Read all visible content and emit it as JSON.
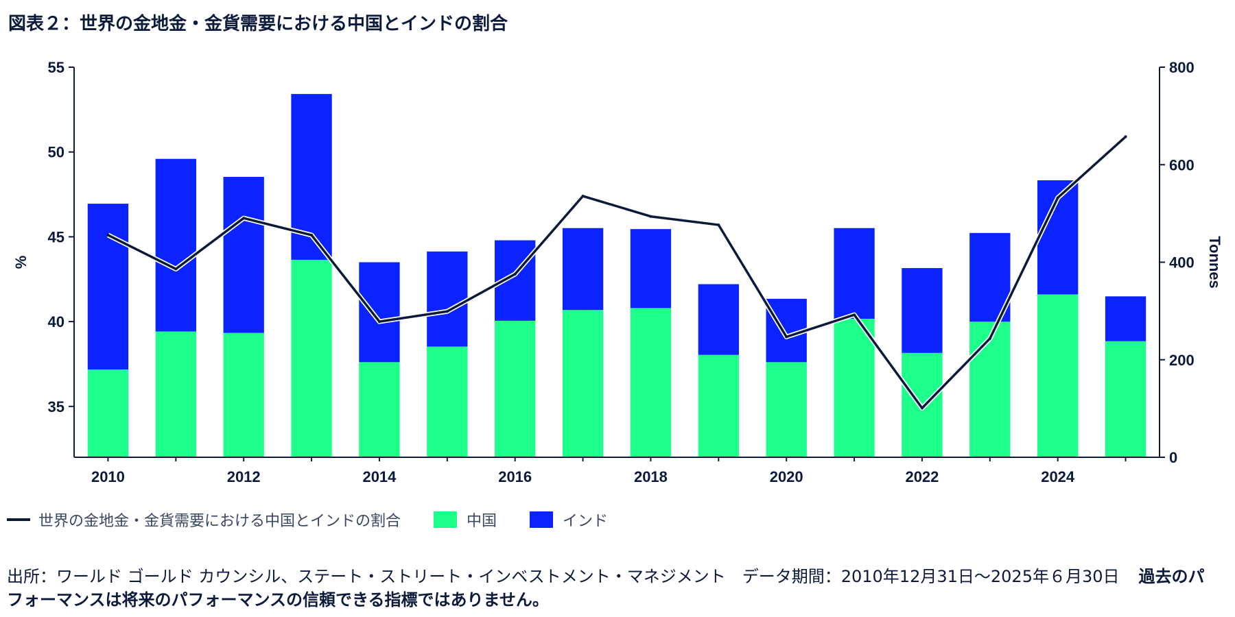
{
  "title": "図表２：世界の金地金・金貨需要における中国とインドの割合",
  "legend": {
    "line_label": "世界の金地金・金貨需要における中国とインドの割合",
    "china_label": "中国",
    "india_label": "インド"
  },
  "source": {
    "text": "出所：ワールド ゴールド カウンシル、ステート・ストリート・インベストメント・マネジメント　データ期間：2010年12月31日～2025年６月30日",
    "disclaimer": "過去のパフォーマンスは将来のパフォーマンスの信頼できる指標ではありません。"
  },
  "colors": {
    "china": "#1dff8a",
    "india": "#0a23ff",
    "line": "#0b1a3a"
  },
  "chart_data": {
    "type": "bar",
    "stacked": true,
    "categories": [
      "2010",
      "2011",
      "2012",
      "2013",
      "2014",
      "2015",
      "2016",
      "2017",
      "2018",
      "2019",
      "2020",
      "2021",
      "2022",
      "2023",
      "2024",
      "2025"
    ],
    "series": [
      {
        "name": "中国",
        "axis": "right",
        "unit": "Tonnes",
        "values": [
          180,
          258,
          255,
          405,
          195,
          227,
          280,
          302,
          306,
          210,
          195,
          284,
          214,
          278,
          334,
          238
        ]
      },
      {
        "name": "インド",
        "axis": "right",
        "unit": "Tonnes",
        "values": [
          340,
          354,
          320,
          340,
          205,
          195,
          165,
          168,
          162,
          145,
          130,
          186,
          174,
          182,
          234,
          92
        ]
      },
      {
        "name": "世界の金地金・金貨需要における中国とインドの割合",
        "type": "line",
        "axis": "left",
        "unit": "%",
        "values": [
          45.1,
          43.1,
          46.1,
          45.1,
          40.0,
          40.6,
          42.8,
          47.4,
          46.2,
          45.7,
          39.1,
          40.4,
          34.9,
          39.0,
          47.3,
          50.9
        ]
      }
    ],
    "xticks": [
      "2010",
      "2012",
      "2014",
      "2016",
      "2018",
      "2020",
      "2022",
      "2024"
    ],
    "ylabel_left": "%",
    "ylim_left": [
      32,
      55
    ],
    "yticks_left": [
      35,
      40,
      45,
      50,
      55
    ],
    "ylabel_right": "Tonnes",
    "ylim_right": [
      0,
      800
    ],
    "yticks_right": [
      0,
      200,
      400,
      600,
      800
    ],
    "legend_position": "bottom"
  }
}
